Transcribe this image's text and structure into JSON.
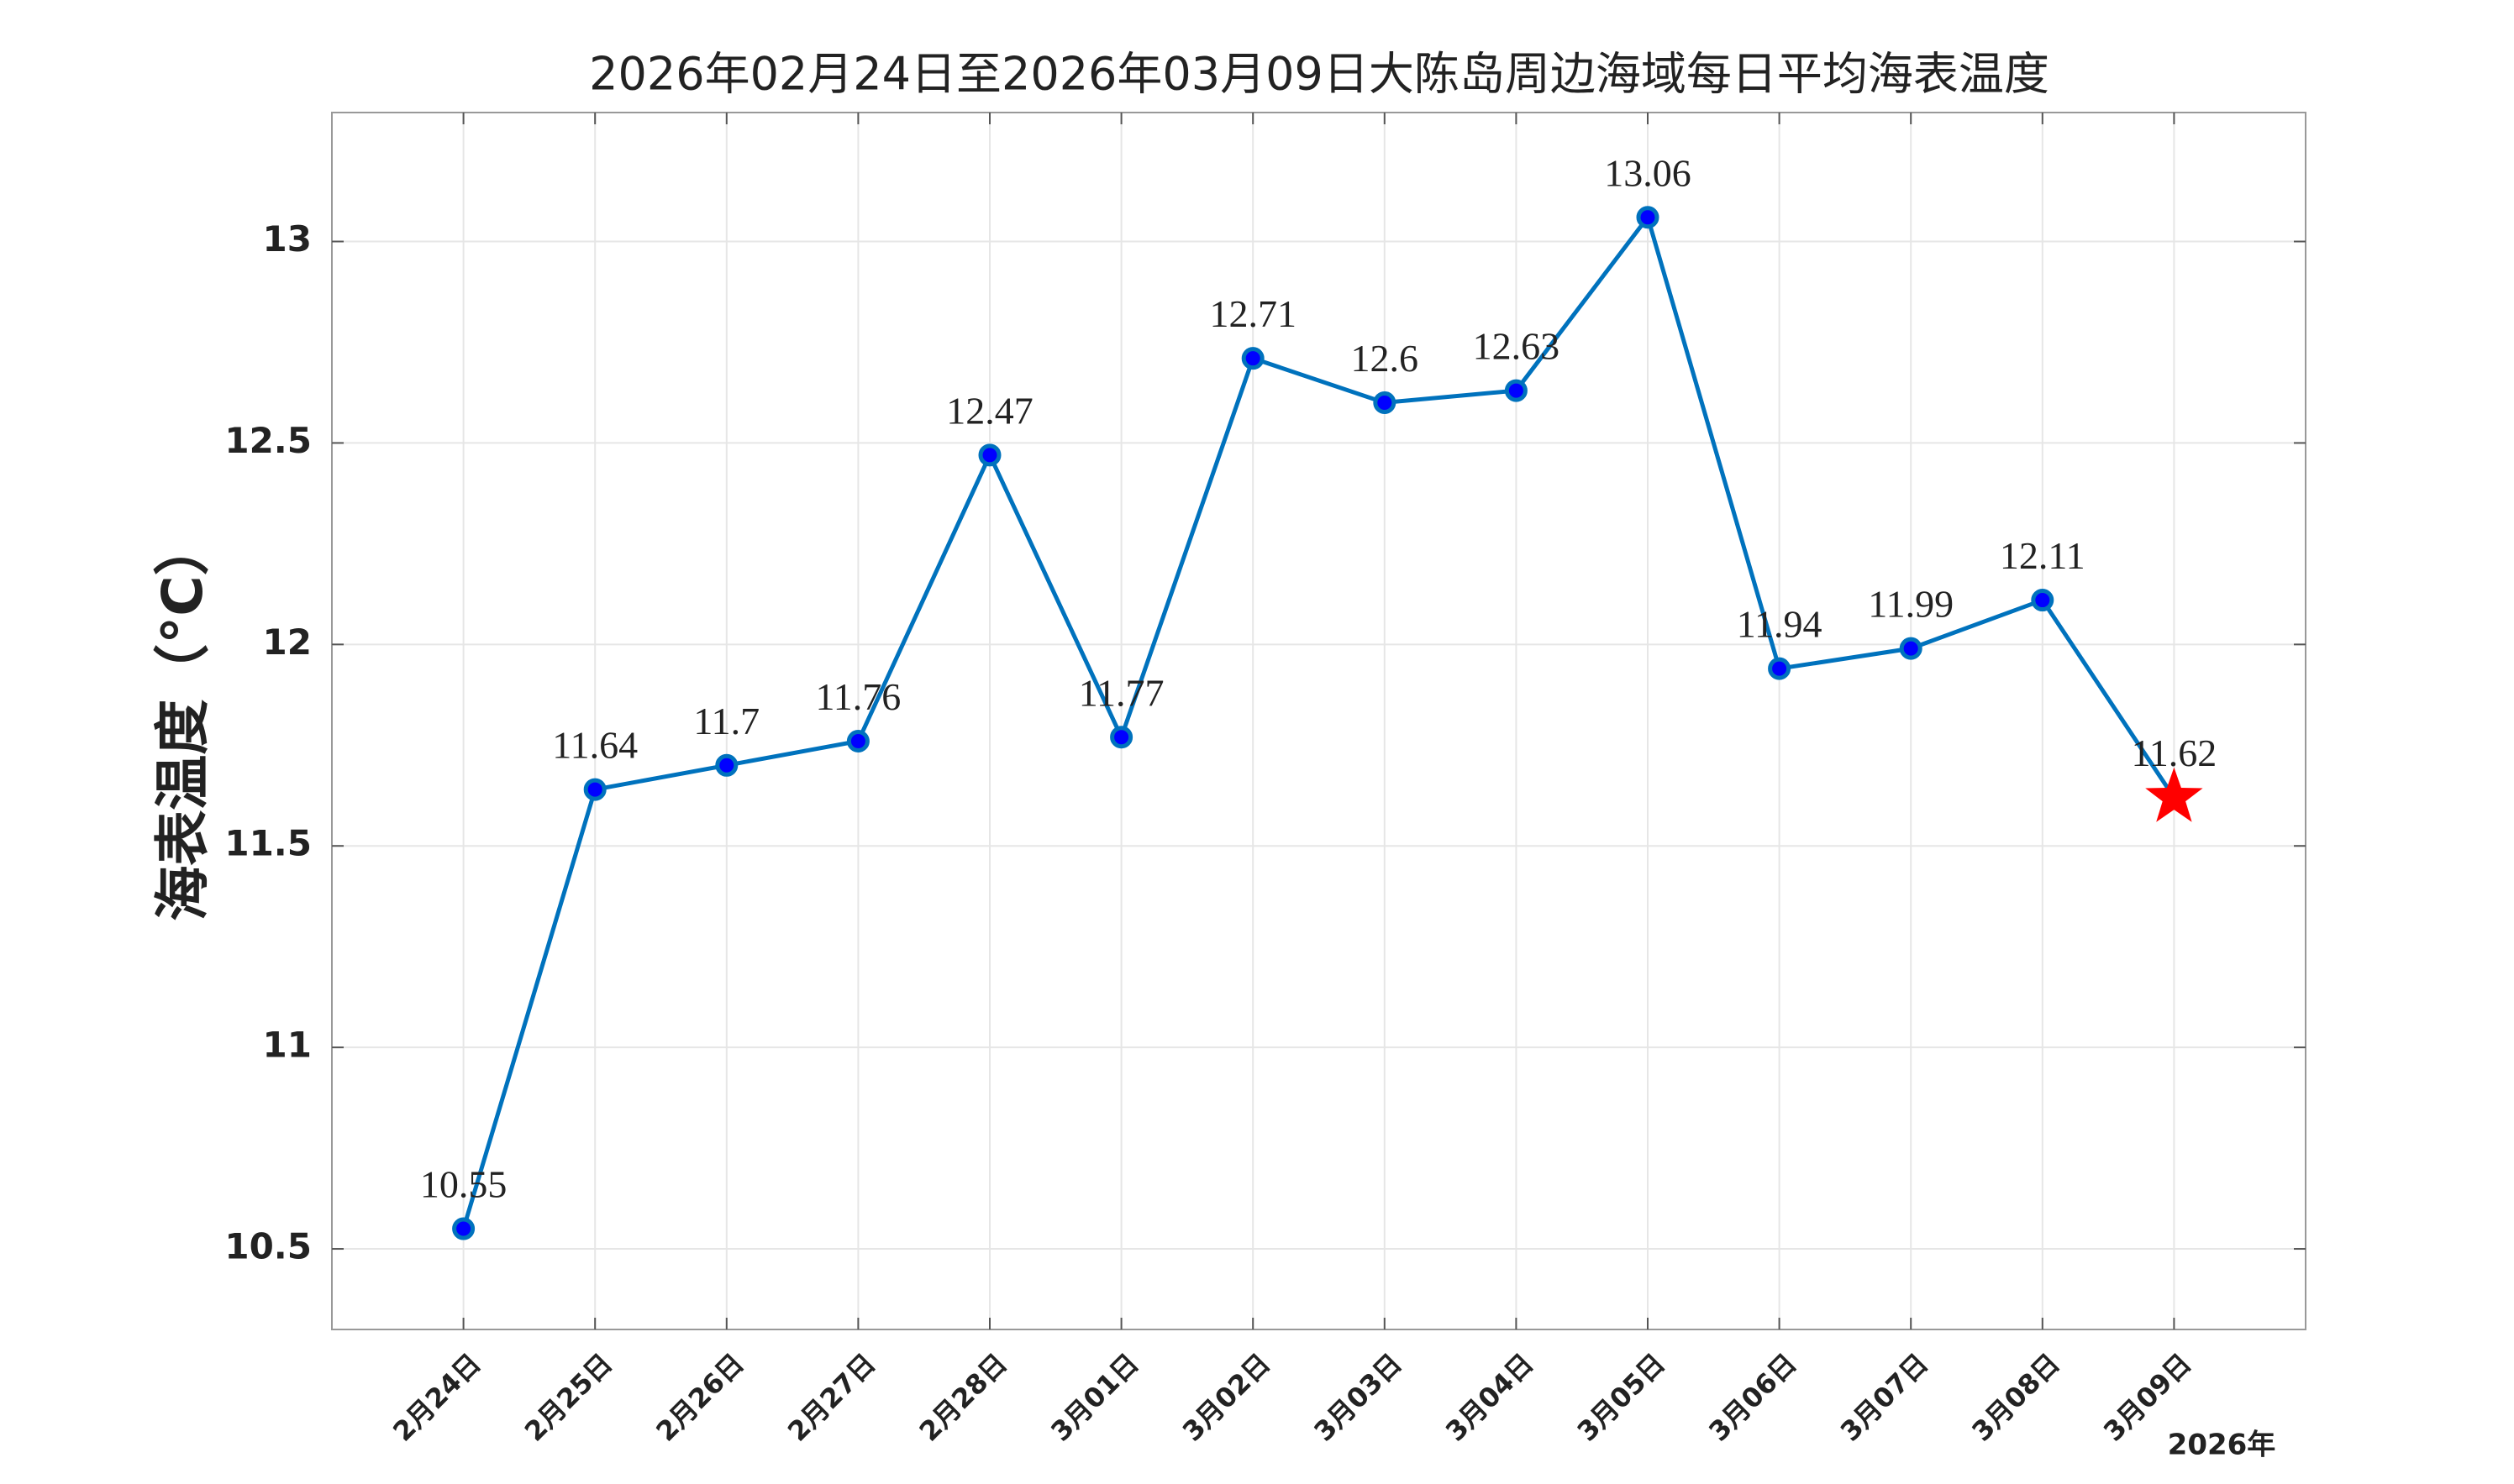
{
  "chart_data": {
    "type": "line",
    "title": "2026年02月24日至2026年03月09日大陈岛周边海域每日平均海表温度",
    "y_label": "海表温度（°C）",
    "x_note": "2026年",
    "categories": [
      "2月24日",
      "2月25日",
      "2月26日",
      "2月27日",
      "2月28日",
      "3月01日",
      "3月02日",
      "3月03日",
      "3月04日",
      "3月05日",
      "3月06日",
      "3月07日",
      "3月08日",
      "3月09日"
    ],
    "series": [
      {
        "name": "海表温度",
        "color": "#0072bd",
        "values": [
          10.55,
          11.64,
          11.7,
          11.76,
          12.47,
          11.77,
          12.71,
          12.6,
          12.63,
          13.06,
          11.94,
          11.99,
          12.11,
          11.62
        ]
      }
    ],
    "marker_color": "#0000ff",
    "highlight_color": "#ff0000",
    "ylim": [
      10.3,
      13.32
    ],
    "yticks": [
      10.5,
      11,
      11.5,
      12,
      12.5,
      13
    ],
    "grid": true
  }
}
